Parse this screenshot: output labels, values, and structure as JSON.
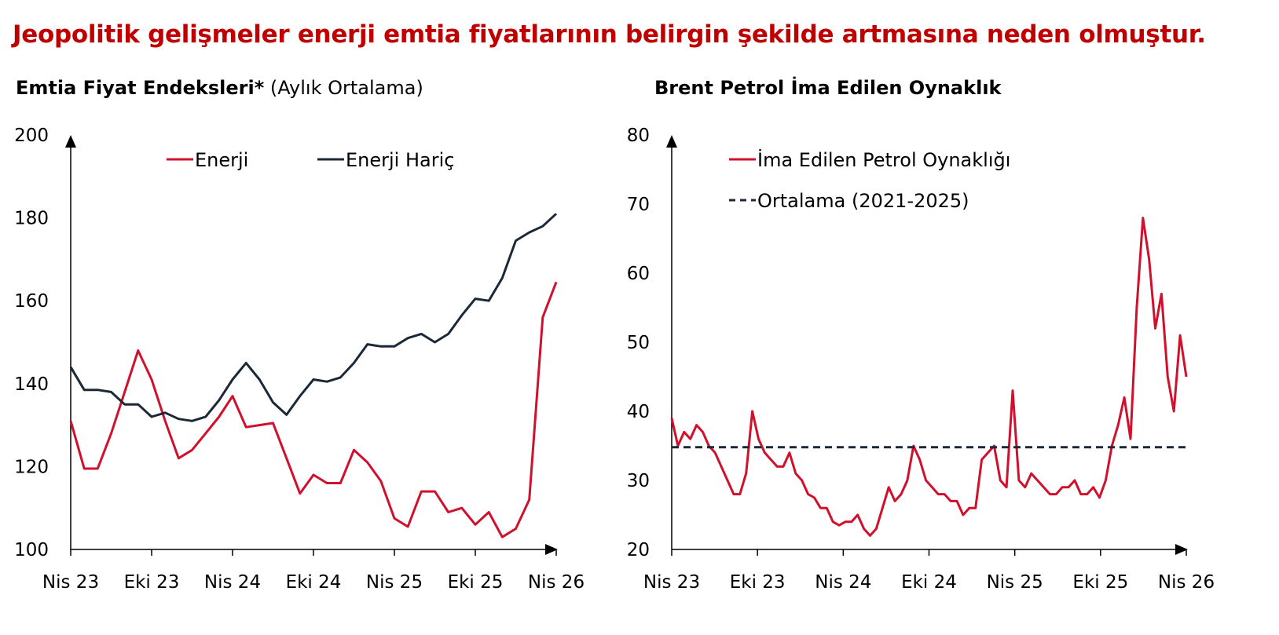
{
  "headline": "Jeopolitik gelişmeler enerji emtia fiyatlarının belirgin şekilde artmasına neden olmuştur.",
  "colors": {
    "headline": "#c00000",
    "energy": "#d0102c",
    "non_energy": "#1b2838",
    "average": "#1b2838"
  },
  "chart_data": [
    {
      "type": "line",
      "title": "Emtia Fiyat Endeksleri*",
      "title_note": "(Aylık Ortalama)",
      "xlabel": "",
      "ylabel": "",
      "ylim": [
        100,
        200
      ],
      "yticks": [
        "100",
        "120",
        "140",
        "160",
        "180",
        "200"
      ],
      "xticks": [
        "Nis 23",
        "Eki 23",
        "Nis 24",
        "Eki 24",
        "Nis 25",
        "Eki 25",
        "Nis 26"
      ],
      "x": [
        "2023-04",
        "2023-05",
        "2023-06",
        "2023-07",
        "2023-08",
        "2023-09",
        "2023-10",
        "2023-11",
        "2023-12",
        "2024-01",
        "2024-02",
        "2024-03",
        "2024-04",
        "2024-05",
        "2024-06",
        "2024-07",
        "2024-08",
        "2024-09",
        "2024-10",
        "2024-11",
        "2024-12",
        "2025-01",
        "2025-02",
        "2025-03",
        "2025-04",
        "2025-05",
        "2025-06",
        "2025-07",
        "2025-08",
        "2025-09",
        "2025-10",
        "2025-11",
        "2025-12",
        "2026-01",
        "2026-02",
        "2026-03",
        "2026-04"
      ],
      "legend_position": "top",
      "series": [
        {
          "name": "Enerji",
          "color": "#d0102c",
          "values": [
            131,
            119.5,
            119.5,
            128,
            138,
            148,
            141,
            131,
            122,
            124,
            128,
            132,
            137,
            129.5,
            130,
            130.5,
            122,
            113.5,
            118,
            116,
            116,
            124,
            121,
            116.5,
            107.5,
            105.5,
            114,
            114,
            109,
            110,
            106,
            109,
            103,
            105,
            112,
            156,
            164.5
          ]
        },
        {
          "name": "Enerji Hariç",
          "color": "#1b2838",
          "values": [
            144,
            138.5,
            138.5,
            138,
            135,
            135,
            132,
            133,
            131.5,
            131,
            132,
            136,
            141,
            145,
            141,
            135.5,
            132.5,
            137,
            141,
            140.5,
            141.5,
            145,
            149.5,
            149,
            149,
            151,
            152,
            150,
            152,
            156.5,
            160.5,
            160,
            165.5,
            174.5,
            176.5,
            178,
            181
          ]
        }
      ]
    },
    {
      "type": "line",
      "title": "Brent Petrol İma Edilen Oynaklık",
      "xlabel": "",
      "ylabel": "",
      "ylim": [
        20,
        80
      ],
      "yticks": [
        "20",
        "30",
        "40",
        "50",
        "60",
        "70",
        "80"
      ],
      "xticks": [
        "Nis 23",
        "Eki 23",
        "Nis 24",
        "Eki 24",
        "Nis 25",
        "Eki 25",
        "Nis 26"
      ],
      "x_start": "2023-04",
      "legend_position": "top-left",
      "series": [
        {
          "name": "İma Edilen Petrol Oynaklığı",
          "color": "#d0102c",
          "values": [
            39,
            35,
            37,
            36,
            38,
            37,
            35,
            34,
            32,
            30,
            28,
            28,
            31,
            40,
            36,
            34,
            33,
            32,
            32,
            34,
            31,
            30,
            28,
            27.5,
            26,
            26,
            24,
            23.5,
            24,
            24,
            25,
            23,
            22,
            23,
            26,
            29,
            27,
            28,
            30,
            35,
            33,
            30,
            29,
            28,
            28,
            27,
            27,
            25,
            26,
            26,
            33,
            34,
            35,
            30,
            29,
            43,
            30,
            29,
            31,
            30,
            29,
            28,
            28,
            29,
            29,
            30,
            28,
            28,
            29,
            27.5,
            30,
            35,
            38,
            42,
            36,
            55,
            68,
            62,
            52,
            57,
            45,
            40,
            51,
            45
          ]
        },
        {
          "name": "Ortalama (2021-2025)",
          "color": "#1b2838",
          "style": "dashed",
          "value": 34.8
        }
      ]
    }
  ]
}
